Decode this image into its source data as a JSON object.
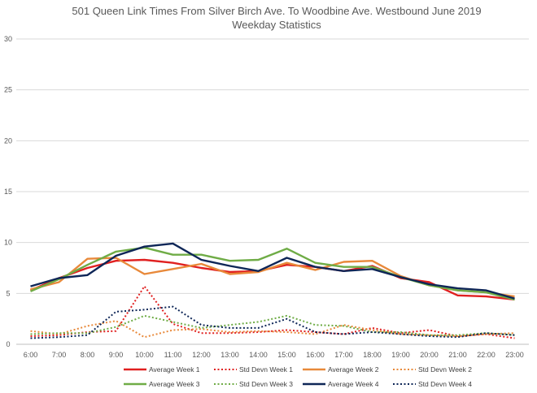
{
  "chart_data": {
    "type": "line",
    "title": "501 Queen Link Times From Silver Birch Ave. To Woodbine Ave. Westbound June 2019",
    "subtitle": "Weekday Statistics",
    "xlabel": "",
    "ylabel": "",
    "ylim": [
      0,
      30
    ],
    "yticks": [
      0,
      5,
      10,
      15,
      20,
      25,
      30
    ],
    "grid": true,
    "legend_position": "bottom",
    "categories": [
      "6:00",
      "7:00",
      "8:00",
      "9:00",
      "10:00",
      "11:00",
      "12:00",
      "13:00",
      "14:00",
      "15:00",
      "16:00",
      "17:00",
      "18:00",
      "19:00",
      "20:00",
      "21:00",
      "22:00",
      "23:00"
    ],
    "series": [
      {
        "name": "Average Week 1",
        "color": "#e02020",
        "style": "solid",
        "values": [
          5.3,
          6.5,
          7.5,
          8.2,
          8.3,
          8.0,
          7.5,
          7.1,
          7.2,
          7.8,
          7.6,
          7.2,
          7.7,
          6.5,
          6.1,
          4.8,
          4.7,
          4.4
        ]
      },
      {
        "name": "Std Devn Week 1",
        "color": "#e02020",
        "style": "dotted",
        "values": [
          0.8,
          0.9,
          1.2,
          1.3,
          5.7,
          2.0,
          1.1,
          1.1,
          1.2,
          1.4,
          1.2,
          1.0,
          1.6,
          1.1,
          1.4,
          0.8,
          1.0,
          0.6
        ]
      },
      {
        "name": "Average Week 2",
        "color": "#e8893a",
        "style": "solid",
        "values": [
          5.4,
          6.1,
          8.4,
          8.5,
          6.9,
          7.4,
          7.9,
          6.9,
          7.1,
          8.0,
          7.3,
          8.1,
          8.2,
          6.7,
          5.8,
          5.3,
          5.1,
          4.7
        ]
      },
      {
        "name": "Std Devn Week 2",
        "color": "#e8893a",
        "style": "dotted",
        "values": [
          1.3,
          1.0,
          1.8,
          2.3,
          0.7,
          1.4,
          1.5,
          1.2,
          1.3,
          1.2,
          1.0,
          1.9,
          1.4,
          1.0,
          0.9,
          0.8,
          1.0,
          1.1
        ]
      },
      {
        "name": "Average Week 3",
        "color": "#6fac46",
        "style": "solid",
        "values": [
          5.2,
          6.4,
          7.8,
          9.1,
          9.5,
          8.8,
          8.8,
          8.2,
          8.3,
          9.4,
          8.0,
          7.6,
          7.6,
          6.6,
          5.8,
          5.3,
          5.1,
          4.4
        ]
      },
      {
        "name": "Std Devn Week 3",
        "color": "#6fac46",
        "style": "dotted",
        "values": [
          1.0,
          1.1,
          1.1,
          1.7,
          2.8,
          2.2,
          1.6,
          1.9,
          2.2,
          2.8,
          1.9,
          1.8,
          1.2,
          1.2,
          0.9,
          0.9,
          1.1,
          0.9
        ]
      },
      {
        "name": "Average Week 4",
        "color": "#0e2657",
        "style": "solid",
        "values": [
          5.7,
          6.5,
          6.8,
          8.7,
          9.6,
          9.9,
          8.3,
          7.7,
          7.2,
          8.5,
          7.6,
          7.2,
          7.4,
          6.6,
          5.9,
          5.5,
          5.3,
          4.5
        ]
      },
      {
        "name": "Std Devn Week 4",
        "color": "#0e2657",
        "style": "dotted",
        "values": [
          0.6,
          0.7,
          0.9,
          3.2,
          3.4,
          3.7,
          1.9,
          1.6,
          1.6,
          2.5,
          1.2,
          1.0,
          1.2,
          1.0,
          0.8,
          0.7,
          1.1,
          0.9
        ]
      }
    ]
  }
}
